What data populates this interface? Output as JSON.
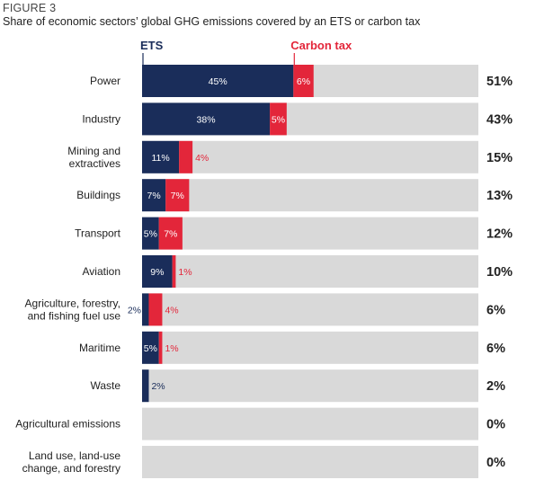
{
  "figure": {
    "label": "FIGURE 3",
    "title": "Share of economic sectors’ global GHG emissions covered by an ETS or carbon tax"
  },
  "colors": {
    "ets": "#1a2d5a",
    "carbon_tax": "#e3263a",
    "background_bar": "#d9d9d9",
    "text_dark": "#222222"
  },
  "chart_data": {
    "type": "bar",
    "orientation": "horizontal",
    "stacked": true,
    "title": "Share of economic sectors’ global GHG emissions covered by an ETS or carbon tax",
    "xlim": [
      0,
      100
    ],
    "grid": false,
    "legend_placement": "top",
    "categories": [
      [
        "Power"
      ],
      [
        "Industry"
      ],
      [
        "Mining and",
        "extractives"
      ],
      [
        "Buildings"
      ],
      [
        "Transport"
      ],
      [
        "Aviation"
      ],
      [
        "Agriculture, forestry,",
        "and fishing fuel use"
      ],
      [
        "Maritime"
      ],
      [
        "Waste"
      ],
      [
        "Agricultural emissions"
      ],
      [
        "Land use, land-use",
        "change, and forestry"
      ]
    ],
    "series": [
      {
        "name": "ETS",
        "values": [
          45,
          38,
          11,
          7,
          5,
          9,
          2,
          5,
          2,
          0,
          0
        ],
        "labels": [
          "45%",
          "38%",
          "11%",
          "7%",
          "5%",
          "9%",
          "2%",
          "5%",
          "2%",
          "",
          ""
        ]
      },
      {
        "name": "Carbon tax",
        "values": [
          6,
          5,
          4,
          7,
          7,
          1,
          4,
          1,
          0,
          0,
          0
        ],
        "labels": [
          "6%",
          "5%",
          "4%",
          "7%",
          "7%",
          "1%",
          "4%",
          "1%",
          "",
          "",
          ""
        ]
      }
    ],
    "totals": [
      "51%",
      "43%",
      "15%",
      "13%",
      "12%",
      "10%",
      "6%",
      "6%",
      "2%",
      "0%",
      "0%"
    ]
  }
}
